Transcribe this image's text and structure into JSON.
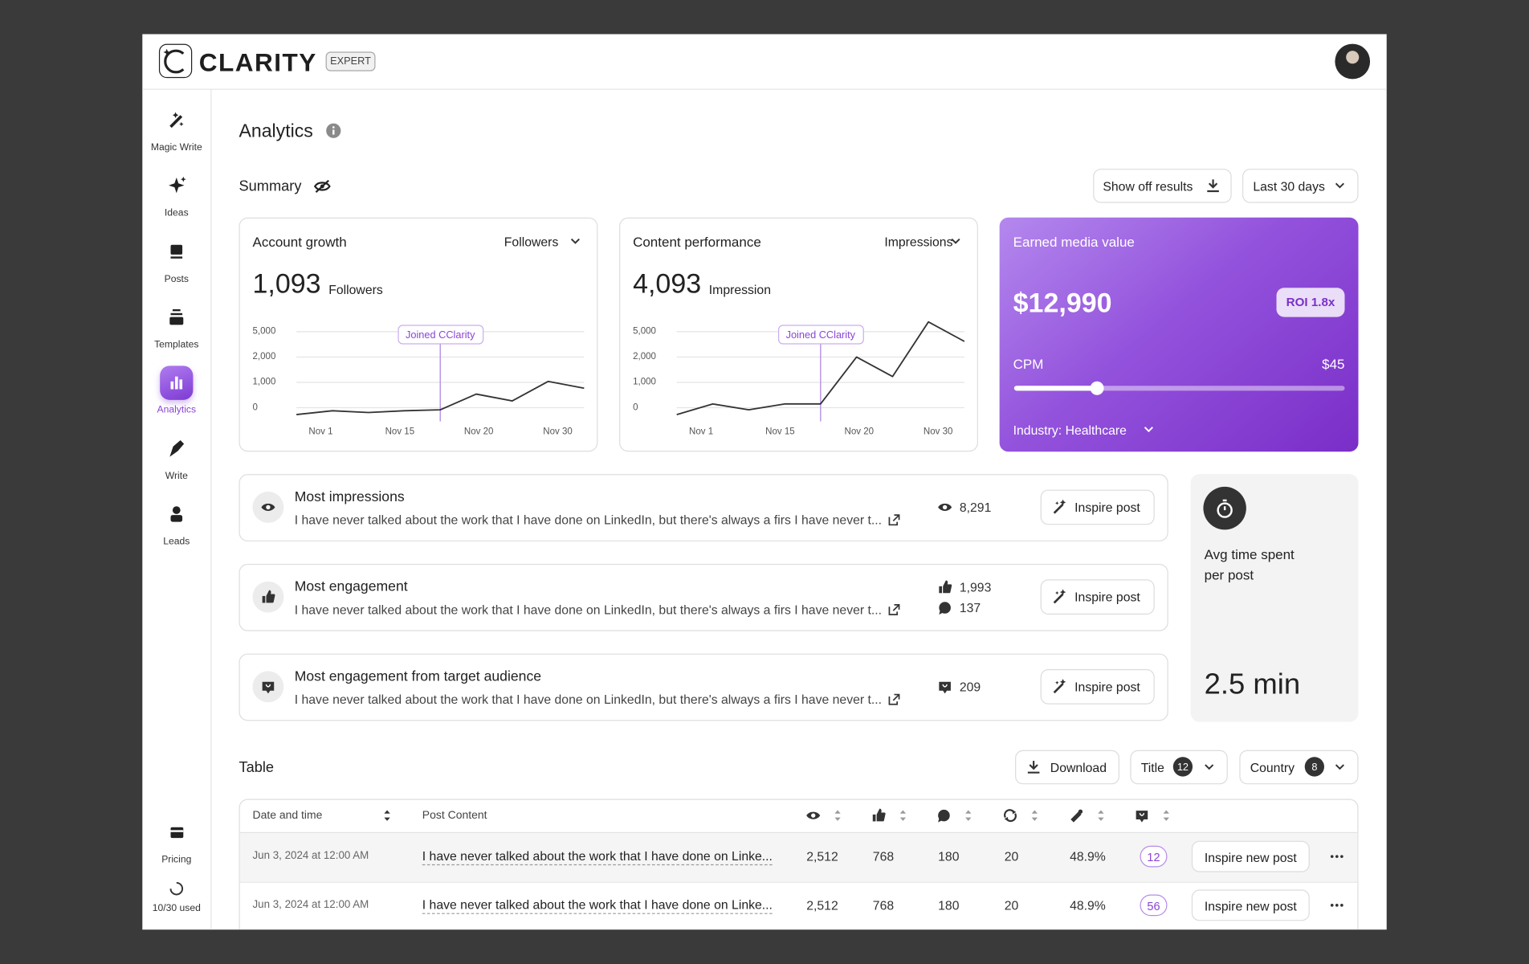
{
  "header": {
    "logo": "CLARITY",
    "badge": "EXPERT"
  },
  "sidebar": {
    "items": [
      "Magic Write",
      "Ideas",
      "Posts",
      "Templates",
      "Analytics",
      "Write",
      "Leads"
    ],
    "pricing": "Pricing",
    "usage": "10/30 used"
  },
  "page_title": "Analytics",
  "summary": {
    "title": "Summary",
    "share_button": "Show off results",
    "period": "Last 30 days"
  },
  "charts": [
    {
      "title": "Account growth",
      "metric": "Followers",
      "total": "1,093",
      "unit": "Followers",
      "annotation": "Joined CClarity",
      "categories": [
        "Nov 1",
        "Nov 15",
        "Nov 20",
        "Nov 30"
      ],
      "yticks": [
        {
          "value": 5000,
          "label": "5,000"
        },
        {
          "value": 2000,
          "label": "2,000"
        },
        {
          "value": 1000,
          "label": "1,000"
        },
        0
      ],
      "values": [
        -270,
        -120,
        -190,
        -120,
        -80,
        540,
        270,
        1040,
        770
      ]
    },
    {
      "title": "Content performance",
      "metric": "Impressions",
      "total": "4,093",
      "unit": "Impression",
      "annotation": "Joined CClarity",
      "categories": [
        "Nov 1",
        "Nov 15",
        "Nov 20",
        "Nov 30"
      ],
      "yticks": [
        {
          "value": 5000,
          "label": "5,000"
        },
        {
          "value": 2000,
          "label": "2,000"
        },
        {
          "value": 1000,
          "label": "1,000"
        },
        0
      ],
      "values": [
        -270,
        150,
        -80,
        150,
        150,
        2000,
        1230,
        6150,
        3850
      ]
    }
  ],
  "earned_media": {
    "title": "Earned media value",
    "value": "$12,990",
    "roi": "ROI 1.8x",
    "cpm_label": "CPM",
    "cpm_value": "$45",
    "industry": "Industry: Healthcare"
  },
  "highlights": [
    {
      "title": "Most impressions",
      "text": "I have never talked about the work that I have done on LinkedIn, but there's always a firs I have never t...",
      "stats": [
        "8,291"
      ],
      "button": "Inspire post"
    },
    {
      "title": "Most engagement",
      "text": "I have never talked about the work that I have done on LinkedIn, but there's always a firs I have never t...",
      "stats": [
        "1,993",
        "137"
      ],
      "button": "Inspire post"
    },
    {
      "title": "Most engagement from target audience",
      "text": "I have never talked about the work that I have done on LinkedIn, but there's always a firs I have never t...",
      "stats": [
        "209"
      ],
      "button": "Inspire post"
    }
  ],
  "avg_time": {
    "label": "Avg time spent per post",
    "value": "2.5 min"
  },
  "table": {
    "title": "Table",
    "download": "Download",
    "filters": [
      {
        "label": "Title",
        "count": "12"
      },
      {
        "label": "Country",
        "count": "8"
      }
    ],
    "columns": [
      "Date and time",
      "Post Content"
    ],
    "rows": [
      [
        "Jun 3, 2024 at 12:00 AM",
        "I have never talked about the work that I have done on Linke...",
        "2,512",
        "768",
        "180",
        "20",
        "48.9%",
        "12"
      ],
      [
        "Jun 3, 2024 at 12:00 AM",
        "I have never talked about the work that I have done on Linke...",
        "2,512",
        "768",
        "180",
        "20",
        "48.9%",
        "56"
      ]
    ],
    "row_button": "Inspire new post"
  }
}
